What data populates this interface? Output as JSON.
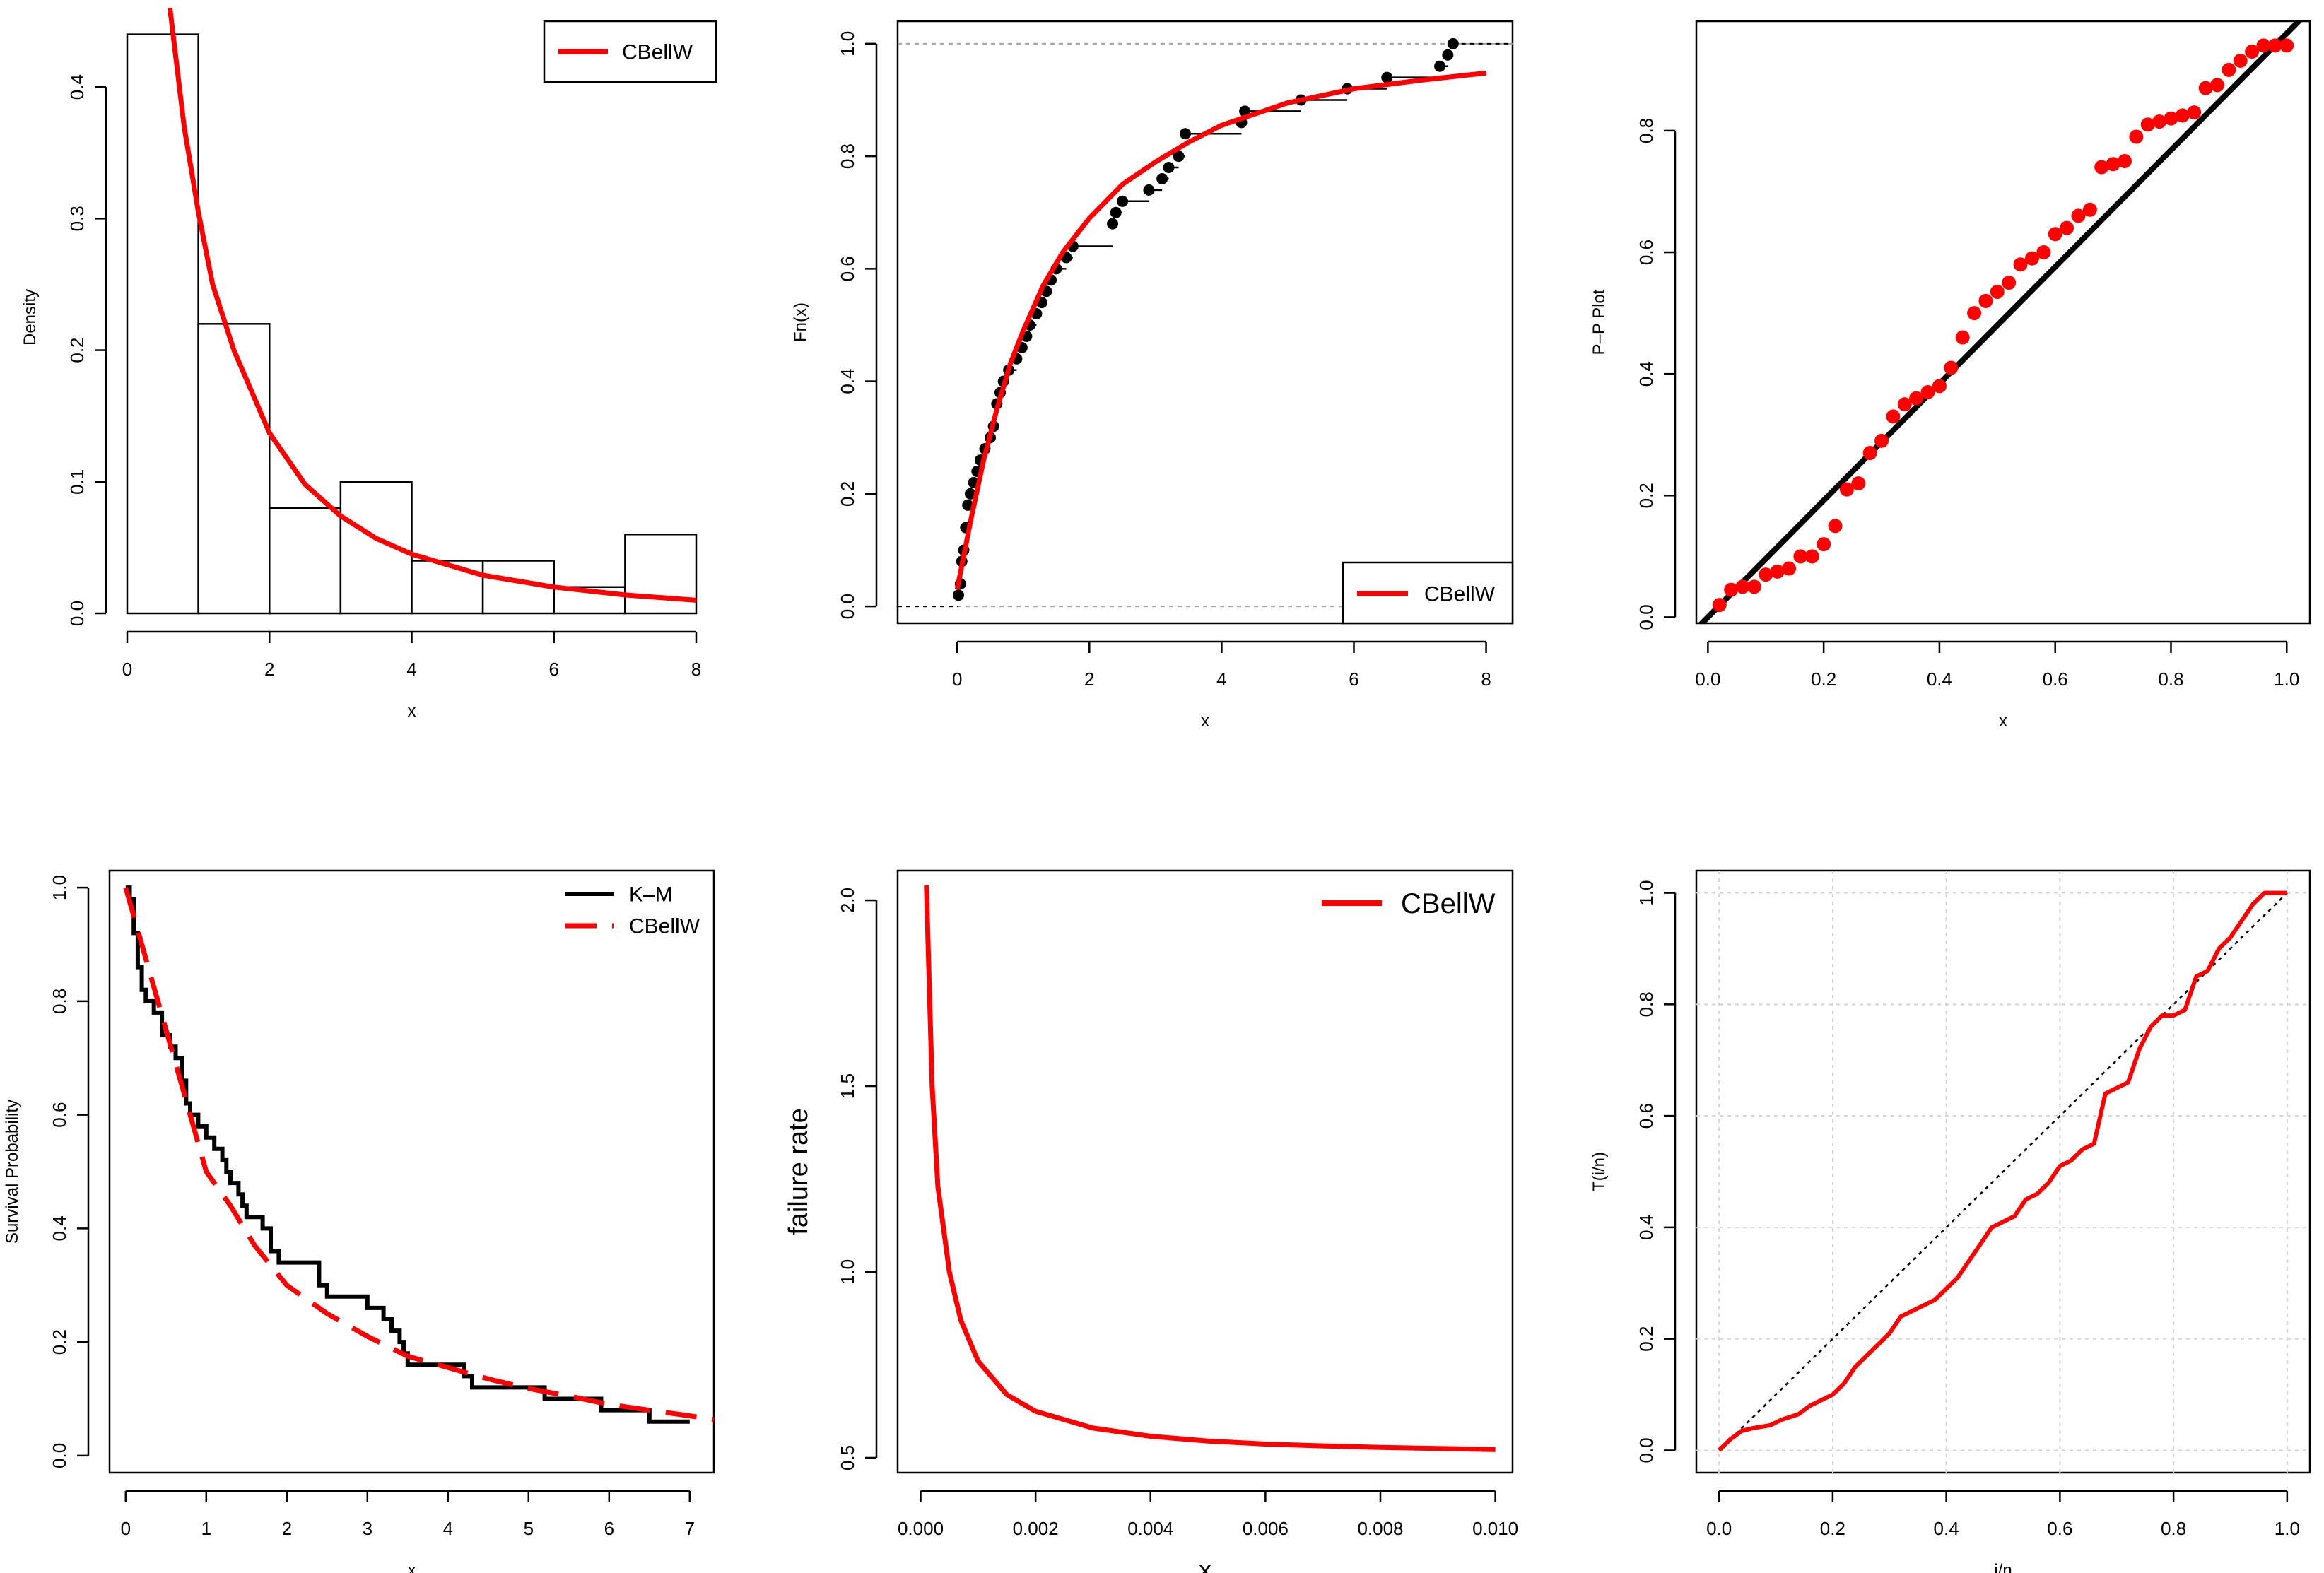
{
  "colors": {
    "red": "#ff0000",
    "black": "#000000",
    "ref_gray": "#a0a0a0",
    "grid_gray": "#d3d3d3"
  },
  "chart_data": [
    {
      "id": "hist",
      "type": "histogram",
      "xlabel": "x",
      "ylabel": "Density",
      "xlim": [
        0,
        8
      ],
      "ylim": [
        0,
        0.45
      ],
      "xticks": [
        "0",
        "2",
        "4",
        "6",
        "8"
      ],
      "yticks": [
        "0.0",
        "0.1",
        "0.2",
        "0.3",
        "0.4"
      ],
      "bins": [
        {
          "from": 0,
          "to": 1,
          "density": 0.44
        },
        {
          "from": 1,
          "to": 2,
          "density": 0.22
        },
        {
          "from": 2,
          "to": 3,
          "density": 0.08
        },
        {
          "from": 3,
          "to": 4,
          "density": 0.1
        },
        {
          "from": 4,
          "to": 5,
          "density": 0.04
        },
        {
          "from": 5,
          "to": 6,
          "density": 0.04
        },
        {
          "from": 6,
          "to": 7,
          "density": 0.02
        },
        {
          "from": 7,
          "to": 8,
          "density": 0.06
        }
      ],
      "curve": {
        "name": "CBellW",
        "x": [
          0.6,
          0.8,
          1.0,
          1.2,
          1.5,
          2.0,
          2.5,
          3.0,
          3.5,
          4.0,
          5.0,
          6.0,
          7.0,
          8.0
        ],
        "y": [
          0.46,
          0.37,
          0.305,
          0.25,
          0.2,
          0.137,
          0.098,
          0.074,
          0.057,
          0.045,
          0.029,
          0.02,
          0.014,
          0.01
        ]
      },
      "legend": {
        "position": "top-right",
        "entries": [
          "CBellW"
        ]
      }
    },
    {
      "id": "ecdf",
      "type": "line",
      "xlabel": "x",
      "ylabel": "Fn(x)",
      "xlim": [
        -0.9,
        8.4
      ],
      "ylim": [
        -0.03,
        1.04
      ],
      "xticks": [
        "0",
        "2",
        "4",
        "6",
        "8"
      ],
      "yticks": [
        "0.0",
        "0.2",
        "0.4",
        "0.6",
        "0.8",
        "1.0"
      ],
      "ecdf_points": [
        [
          0.02,
          0.02
        ],
        [
          0.05,
          0.04
        ],
        [
          0.07,
          0.08
        ],
        [
          0.1,
          0.1
        ],
        [
          0.13,
          0.14
        ],
        [
          0.16,
          0.18
        ],
        [
          0.2,
          0.2
        ],
        [
          0.25,
          0.22
        ],
        [
          0.3,
          0.24
        ],
        [
          0.35,
          0.26
        ],
        [
          0.42,
          0.28
        ],
        [
          0.5,
          0.3
        ],
        [
          0.55,
          0.32
        ],
        [
          0.6,
          0.36
        ],
        [
          0.65,
          0.38
        ],
        [
          0.7,
          0.4
        ],
        [
          0.78,
          0.42
        ],
        [
          0.9,
          0.44
        ],
        [
          0.98,
          0.46
        ],
        [
          1.05,
          0.48
        ],
        [
          1.1,
          0.5
        ],
        [
          1.2,
          0.52
        ],
        [
          1.28,
          0.54
        ],
        [
          1.35,
          0.56
        ],
        [
          1.42,
          0.58
        ],
        [
          1.5,
          0.6
        ],
        [
          1.65,
          0.62
        ],
        [
          1.75,
          0.64
        ],
        [
          2.35,
          0.68
        ],
        [
          2.4,
          0.7
        ],
        [
          2.5,
          0.72
        ],
        [
          2.9,
          0.74
        ],
        [
          3.1,
          0.76
        ],
        [
          3.2,
          0.78
        ],
        [
          3.35,
          0.8
        ],
        [
          3.45,
          0.84
        ],
        [
          4.3,
          0.86
        ],
        [
          4.35,
          0.88
        ],
        [
          5.2,
          0.9
        ],
        [
          5.9,
          0.92
        ],
        [
          6.5,
          0.94
        ],
        [
          7.3,
          0.96
        ],
        [
          7.42,
          0.98
        ],
        [
          7.5,
          1.0
        ]
      ],
      "curve": {
        "name": "CBellW",
        "x": [
          0.0,
          0.2,
          0.4,
          0.6,
          0.8,
          1.0,
          1.3,
          1.6,
          2.0,
          2.5,
          3.0,
          3.5,
          4.0,
          5.0,
          6.0,
          7.0,
          8.0
        ],
        "y": [
          0.03,
          0.15,
          0.26,
          0.35,
          0.43,
          0.49,
          0.57,
          0.63,
          0.69,
          0.75,
          0.79,
          0.825,
          0.855,
          0.895,
          0.92,
          0.935,
          0.948
        ]
      },
      "ref_lines": [
        0,
        1
      ],
      "legend": {
        "position": "bottom-right",
        "entries": [
          "CBellW"
        ]
      }
    },
    {
      "id": "pp",
      "type": "scatter",
      "xlabel": "x",
      "ylabel": "P–P Plot",
      "xlim": [
        -0.02,
        1.04
      ],
      "ylim": [
        -0.01,
        0.98
      ],
      "xticks": [
        "0.0",
        "0.2",
        "0.4",
        "0.6",
        "0.8",
        "1.0"
      ],
      "yticks": [
        "0.0",
        "0.2",
        "0.4",
        "0.6",
        "0.8"
      ],
      "points": [
        [
          0.02,
          0.02
        ],
        [
          0.04,
          0.045
        ],
        [
          0.06,
          0.05
        ],
        [
          0.08,
          0.05
        ],
        [
          0.1,
          0.07
        ],
        [
          0.12,
          0.075
        ],
        [
          0.14,
          0.08
        ],
        [
          0.16,
          0.1
        ],
        [
          0.18,
          0.1
        ],
        [
          0.2,
          0.12
        ],
        [
          0.22,
          0.15
        ],
        [
          0.24,
          0.21
        ],
        [
          0.26,
          0.22
        ],
        [
          0.28,
          0.27
        ],
        [
          0.3,
          0.29
        ],
        [
          0.32,
          0.33
        ],
        [
          0.34,
          0.35
        ],
        [
          0.36,
          0.36
        ],
        [
          0.38,
          0.37
        ],
        [
          0.4,
          0.38
        ],
        [
          0.42,
          0.41
        ],
        [
          0.44,
          0.46
        ],
        [
          0.46,
          0.5
        ],
        [
          0.48,
          0.52
        ],
        [
          0.5,
          0.535
        ],
        [
          0.52,
          0.55
        ],
        [
          0.54,
          0.58
        ],
        [
          0.56,
          0.59
        ],
        [
          0.58,
          0.6
        ],
        [
          0.6,
          0.63
        ],
        [
          0.62,
          0.64
        ],
        [
          0.64,
          0.66
        ],
        [
          0.66,
          0.67
        ],
        [
          0.68,
          0.74
        ],
        [
          0.7,
          0.745
        ],
        [
          0.72,
          0.75
        ],
        [
          0.74,
          0.79
        ],
        [
          0.76,
          0.81
        ],
        [
          0.78,
          0.815
        ],
        [
          0.8,
          0.82
        ],
        [
          0.82,
          0.825
        ],
        [
          0.84,
          0.83
        ],
        [
          0.86,
          0.87
        ],
        [
          0.88,
          0.875
        ],
        [
          0.9,
          0.9
        ],
        [
          0.92,
          0.915
        ],
        [
          0.94,
          0.93
        ],
        [
          0.96,
          0.94
        ],
        [
          0.98,
          0.94
        ],
        [
          1.0,
          0.94
        ]
      ],
      "ref_line": {
        "slope": 0.96,
        "intercept": 0.0
      }
    },
    {
      "id": "km",
      "type": "line",
      "xlabel": "x",
      "ylabel": "Survival Probability",
      "xlim": [
        -0.2,
        7.3
      ],
      "ylim": [
        -0.03,
        1.03
      ],
      "xticks": [
        "0",
        "1",
        "2",
        "3",
        "4",
        "5",
        "6",
        "7"
      ],
      "yticks": [
        "0.0",
        "0.2",
        "0.4",
        "0.6",
        "0.8",
        "1.0"
      ],
      "km_steps": [
        [
          0.0,
          1.0
        ],
        [
          0.05,
          0.98
        ],
        [
          0.1,
          0.92
        ],
        [
          0.15,
          0.86
        ],
        [
          0.2,
          0.82
        ],
        [
          0.25,
          0.8
        ],
        [
          0.35,
          0.78
        ],
        [
          0.45,
          0.74
        ],
        [
          0.55,
          0.72
        ],
        [
          0.62,
          0.7
        ],
        [
          0.7,
          0.66
        ],
        [
          0.75,
          0.62
        ],
        [
          0.8,
          0.6
        ],
        [
          0.9,
          0.58
        ],
        [
          1.0,
          0.56
        ],
        [
          1.1,
          0.54
        ],
        [
          1.2,
          0.52
        ],
        [
          1.25,
          0.5
        ],
        [
          1.3,
          0.48
        ],
        [
          1.4,
          0.46
        ],
        [
          1.45,
          0.44
        ],
        [
          1.5,
          0.42
        ],
        [
          1.7,
          0.4
        ],
        [
          1.8,
          0.36
        ],
        [
          1.9,
          0.34
        ],
        [
          2.4,
          0.3
        ],
        [
          2.5,
          0.28
        ],
        [
          3.0,
          0.26
        ],
        [
          3.2,
          0.24
        ],
        [
          3.3,
          0.22
        ],
        [
          3.4,
          0.2
        ],
        [
          3.45,
          0.18
        ],
        [
          3.5,
          0.16
        ],
        [
          4.2,
          0.14
        ],
        [
          4.3,
          0.12
        ],
        [
          5.2,
          0.1
        ],
        [
          5.9,
          0.08
        ],
        [
          6.5,
          0.06
        ],
        [
          7.0,
          0.06
        ]
      ],
      "curve": {
        "name": "CBellW",
        "x": [
          0.0,
          0.2,
          0.4,
          0.6,
          0.8,
          1.0,
          1.3,
          1.6,
          2.0,
          2.5,
          3.0,
          3.5,
          4.0,
          4.5,
          5.0,
          5.5,
          6.0,
          6.5,
          7.0,
          7.3
        ],
        "y": [
          1.0,
          0.9,
          0.8,
          0.7,
          0.6,
          0.5,
          0.44,
          0.37,
          0.3,
          0.25,
          0.21,
          0.175,
          0.155,
          0.135,
          0.118,
          0.105,
          0.09,
          0.08,
          0.07,
          0.063
        ]
      },
      "legend": {
        "position": "top-right",
        "entries": [
          "K–M",
          "CBellW"
        ]
      }
    },
    {
      "id": "hazard",
      "type": "line",
      "xlabel": "x",
      "ylabel": "failure rate",
      "xlim": [
        -0.0004,
        0.0103
      ],
      "ylim": [
        0.46,
        2.08
      ],
      "xticks": [
        "0.000",
        "0.002",
        "0.004",
        "0.006",
        "0.008",
        "0.010"
      ],
      "yticks": [
        "0.5",
        "1.0",
        "1.5",
        "2.0"
      ],
      "curve": {
        "name": "CBellW",
        "x": [
          0.0001,
          0.0002,
          0.0003,
          0.0005,
          0.0007,
          0.001,
          0.0015,
          0.002,
          0.003,
          0.004,
          0.005,
          0.006,
          0.007,
          0.008,
          0.009,
          0.01
        ],
        "y": [
          2.04,
          1.5,
          1.23,
          1.0,
          0.87,
          0.76,
          0.67,
          0.625,
          0.58,
          0.558,
          0.545,
          0.537,
          0.532,
          0.528,
          0.525,
          0.522
        ]
      },
      "legend": {
        "position": "top-right",
        "entries": [
          "CBellW"
        ]
      }
    },
    {
      "id": "ttt",
      "type": "line",
      "xlabel": "i/n",
      "ylabel": "T(i/n)",
      "xlim": [
        -0.04,
        1.04
      ],
      "ylim": [
        -0.04,
        1.04
      ],
      "xticks": [
        "0.0",
        "0.2",
        "0.4",
        "0.6",
        "0.8",
        "1.0"
      ],
      "yticks": [
        "0.0",
        "0.2",
        "0.4",
        "0.6",
        "0.8",
        "1.0"
      ],
      "ttt_points": [
        [
          0.0,
          0.0
        ],
        [
          0.02,
          0.02
        ],
        [
          0.04,
          0.035
        ],
        [
          0.06,
          0.04
        ],
        [
          0.09,
          0.045
        ],
        [
          0.11,
          0.055
        ],
        [
          0.14,
          0.065
        ],
        [
          0.16,
          0.08
        ],
        [
          0.18,
          0.09
        ],
        [
          0.2,
          0.1
        ],
        [
          0.22,
          0.12
        ],
        [
          0.24,
          0.15
        ],
        [
          0.26,
          0.17
        ],
        [
          0.28,
          0.19
        ],
        [
          0.3,
          0.21
        ],
        [
          0.32,
          0.24
        ],
        [
          0.34,
          0.25
        ],
        [
          0.36,
          0.26
        ],
        [
          0.38,
          0.27
        ],
        [
          0.4,
          0.29
        ],
        [
          0.42,
          0.31
        ],
        [
          0.44,
          0.34
        ],
        [
          0.46,
          0.37
        ],
        [
          0.48,
          0.4
        ],
        [
          0.5,
          0.41
        ],
        [
          0.52,
          0.42
        ],
        [
          0.54,
          0.45
        ],
        [
          0.56,
          0.46
        ],
        [
          0.58,
          0.48
        ],
        [
          0.6,
          0.51
        ],
        [
          0.62,
          0.52
        ],
        [
          0.64,
          0.54
        ],
        [
          0.66,
          0.55
        ],
        [
          0.68,
          0.64
        ],
        [
          0.7,
          0.65
        ],
        [
          0.72,
          0.66
        ],
        [
          0.74,
          0.72
        ],
        [
          0.76,
          0.76
        ],
        [
          0.78,
          0.78
        ],
        [
          0.8,
          0.78
        ],
        [
          0.82,
          0.79
        ],
        [
          0.84,
          0.85
        ],
        [
          0.86,
          0.86
        ],
        [
          0.88,
          0.9
        ],
        [
          0.9,
          0.92
        ],
        [
          0.92,
          0.95
        ],
        [
          0.94,
          0.98
        ],
        [
          0.96,
          1.0
        ],
        [
          1.0,
          1.0
        ]
      ],
      "diagonal": true
    }
  ]
}
